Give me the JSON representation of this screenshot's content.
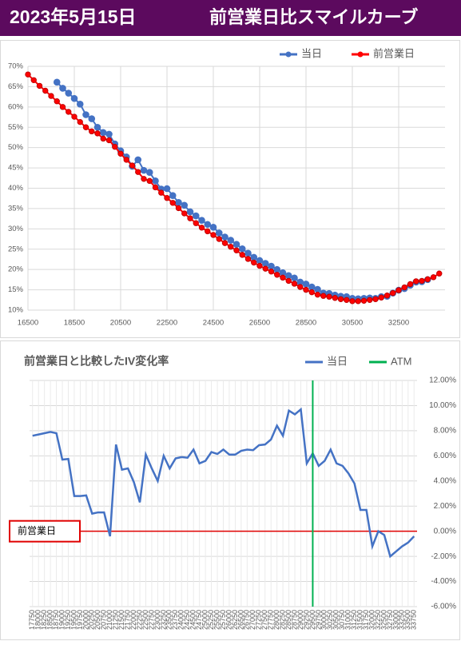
{
  "header": {
    "date": "2023年5月15日",
    "title": "前営業日比スマイルカーブ"
  },
  "chart_data": [
    {
      "type": "line",
      "xlim": [
        16500,
        34500
      ],
      "xticks": [
        16500,
        18500,
        20500,
        22500,
        24500,
        26500,
        28500,
        30500,
        32500
      ],
      "ylim": [
        10,
        70
      ],
      "yticks": [
        {
          "value": 10,
          "label": "10%"
        },
        {
          "value": 15,
          "label": "15%"
        },
        {
          "value": 20,
          "label": "20%"
        },
        {
          "value": 25,
          "label": "25%"
        },
        {
          "value": 30,
          "label": "30%"
        },
        {
          "value": 35,
          "label": "35%"
        },
        {
          "value": 40,
          "label": "40%"
        },
        {
          "value": 45,
          "label": "45%"
        },
        {
          "value": 50,
          "label": "50%"
        },
        {
          "value": 55,
          "label": "55%"
        },
        {
          "value": 60,
          "label": "60%"
        },
        {
          "value": 65,
          "label": "65%"
        },
        {
          "value": 70,
          "label": "70%"
        }
      ],
      "grid": true,
      "legend": "top",
      "series": [
        {
          "name": "当日",
          "color": "#4472c4",
          "x": [
            17750,
            18000,
            18250,
            18500,
            18750,
            19000,
            19250,
            19500,
            19750,
            20000,
            20250,
            20500,
            20750,
            21000,
            21250,
            21500,
            21750,
            22000,
            22250,
            22500,
            22750,
            23000,
            23250,
            23500,
            23750,
            24000,
            24250,
            24500,
            24750,
            25000,
            25250,
            25500,
            25750,
            26000,
            26250,
            26500,
            26750,
            27000,
            27250,
            27500,
            27750,
            28000,
            28250,
            28500,
            28750,
            29000,
            29250,
            29500,
            29750,
            30000,
            30250,
            30500,
            30750,
            31000,
            31250,
            31500,
            31750,
            32000,
            32250,
            32500,
            32750,
            33000,
            33250,
            33500,
            33750
          ],
          "values": [
            66.1,
            64.6,
            63.4,
            62.1,
            60.7,
            58.1,
            57.1,
            55.0,
            53.7,
            53.3,
            50.9,
            49.2,
            47.7,
            45.4,
            47.0,
            44.4,
            43.9,
            41.8,
            39.8,
            39.9,
            38.2,
            36.5,
            35.8,
            34.2,
            33.2,
            32.1,
            31.1,
            30.4,
            29.0,
            28.0,
            27.2,
            26.2,
            25.1,
            24.0,
            23.0,
            22.2,
            21.5,
            20.8,
            20.0,
            19.2,
            18.5,
            17.9,
            16.9,
            16.4,
            15.7,
            15.1,
            14.2,
            14.1,
            13.7,
            13.4,
            13.3,
            12.9,
            12.8,
            12.9,
            13.0,
            12.9,
            13.3,
            13.4,
            14.2,
            14.9,
            15.3,
            16.1,
            16.9,
            17.0,
            17.5
          ]
        },
        {
          "name": "前営業日",
          "color": "#ff0000",
          "x": [
            16500,
            16750,
            17000,
            17250,
            17500,
            17750,
            18000,
            18250,
            18500,
            18750,
            19000,
            19250,
            19500,
            19750,
            20000,
            20250,
            20500,
            20750,
            21000,
            21250,
            21500,
            21750,
            22000,
            22250,
            22500,
            22750,
            23000,
            23250,
            23500,
            23750,
            24000,
            24250,
            24500,
            24750,
            25000,
            25250,
            25500,
            25750,
            26000,
            26250,
            26500,
            26750,
            27000,
            27250,
            27500,
            27750,
            28000,
            28250,
            28500,
            28750,
            29000,
            29250,
            29500,
            29750,
            30000,
            30250,
            30500,
            30750,
            31000,
            31250,
            31500,
            31750,
            32000,
            32250,
            32500,
            32750,
            33000,
            33250,
            33500,
            33750,
            34000,
            34250
          ],
          "values": [
            68.0,
            66.6,
            65.2,
            64.0,
            62.7,
            61.4,
            60.0,
            58.8,
            57.6,
            56.3,
            55.0,
            54.0,
            53.5,
            52.2,
            51.8,
            50.2,
            48.5,
            47.0,
            45.6,
            44.0,
            42.3,
            41.8,
            40.2,
            38.9,
            37.6,
            36.4,
            35.1,
            33.8,
            32.6,
            31.4,
            30.3,
            29.4,
            28.5,
            27.5,
            26.5,
            25.6,
            24.7,
            23.6,
            22.6,
            21.7,
            20.9,
            20.2,
            19.5,
            18.7,
            18.0,
            17.2,
            16.5,
            15.7,
            15.0,
            14.4,
            13.8,
            13.5,
            13.3,
            13.0,
            12.7,
            12.5,
            12.2,
            12.2,
            12.3,
            12.5,
            12.7,
            13.1,
            13.6,
            14.2,
            14.9,
            15.6,
            16.4,
            17.1,
            17.2,
            17.6,
            18.1,
            19.0
          ]
        }
      ]
    },
    {
      "type": "line",
      "title": "前営業日と比較したIV変化率",
      "categories": [
        17750,
        18000,
        18250,
        18500,
        18750,
        19000,
        19250,
        19500,
        19750,
        20000,
        20250,
        20500,
        20750,
        21000,
        21250,
        21500,
        21750,
        22000,
        22250,
        22500,
        22750,
        23000,
        23250,
        23500,
        23750,
        24000,
        24250,
        24500,
        24750,
        25000,
        25250,
        25500,
        25750,
        26000,
        26250,
        26500,
        26750,
        27000,
        27250,
        27500,
        27750,
        28000,
        28250,
        28500,
        28750,
        29000,
        29250,
        29500,
        29750,
        30000,
        30250,
        30500,
        30750,
        31000,
        31250,
        31500,
        31750,
        32000,
        32250,
        32500,
        32750,
        33000,
        33250,
        33500,
        33750
      ],
      "ylim": [
        -6,
        12
      ],
      "yticks": [
        {
          "value": -6,
          "label": "-6.00%"
        },
        {
          "value": -4,
          "label": "-4.00%"
        },
        {
          "value": -2,
          "label": "-2.00%"
        },
        {
          "value": 0,
          "label": "0.00%"
        },
        {
          "value": 2,
          "label": "2.00%"
        },
        {
          "value": 4,
          "label": "4.00%"
        },
        {
          "value": 6,
          "label": "6.00%"
        },
        {
          "value": 8,
          "label": "8.00%"
        },
        {
          "value": 10,
          "label": "10.00%"
        },
        {
          "value": 12,
          "label": "12.00%"
        }
      ],
      "y_axis_side": "right",
      "grid": true,
      "legend": "top-right",
      "series": [
        {
          "name": "当日",
          "color": "#4472c4",
          "values": [
            7.6,
            7.7,
            7.8,
            7.9,
            7.8,
            5.7,
            5.75,
            2.8,
            2.8,
            2.85,
            1.4,
            1.5,
            1.5,
            -0.4,
            6.9,
            4.9,
            5.0,
            3.9,
            2.3,
            6.1,
            5.0,
            4.0,
            6.0,
            5.0,
            5.8,
            5.9,
            5.85,
            6.5,
            5.4,
            5.6,
            6.3,
            6.15,
            6.5,
            6.1,
            6.1,
            6.4,
            6.5,
            6.45,
            6.85,
            6.9,
            7.3,
            8.4,
            7.6,
            9.6,
            9.3,
            9.7,
            5.4,
            6.2,
            5.2,
            5.6,
            6.5,
            5.4,
            5.2,
            4.6,
            3.8,
            1.7,
            1.7,
            -1.2,
            0,
            -0.3,
            -2.0,
            -1.6,
            -1.2,
            -0.9,
            -0.4
          ]
        },
        {
          "name": "ATM",
          "color": "#00b050",
          "at": 29500
        }
      ],
      "reference": {
        "value": 0,
        "label": "前営業日",
        "color": "#e00000"
      }
    }
  ]
}
